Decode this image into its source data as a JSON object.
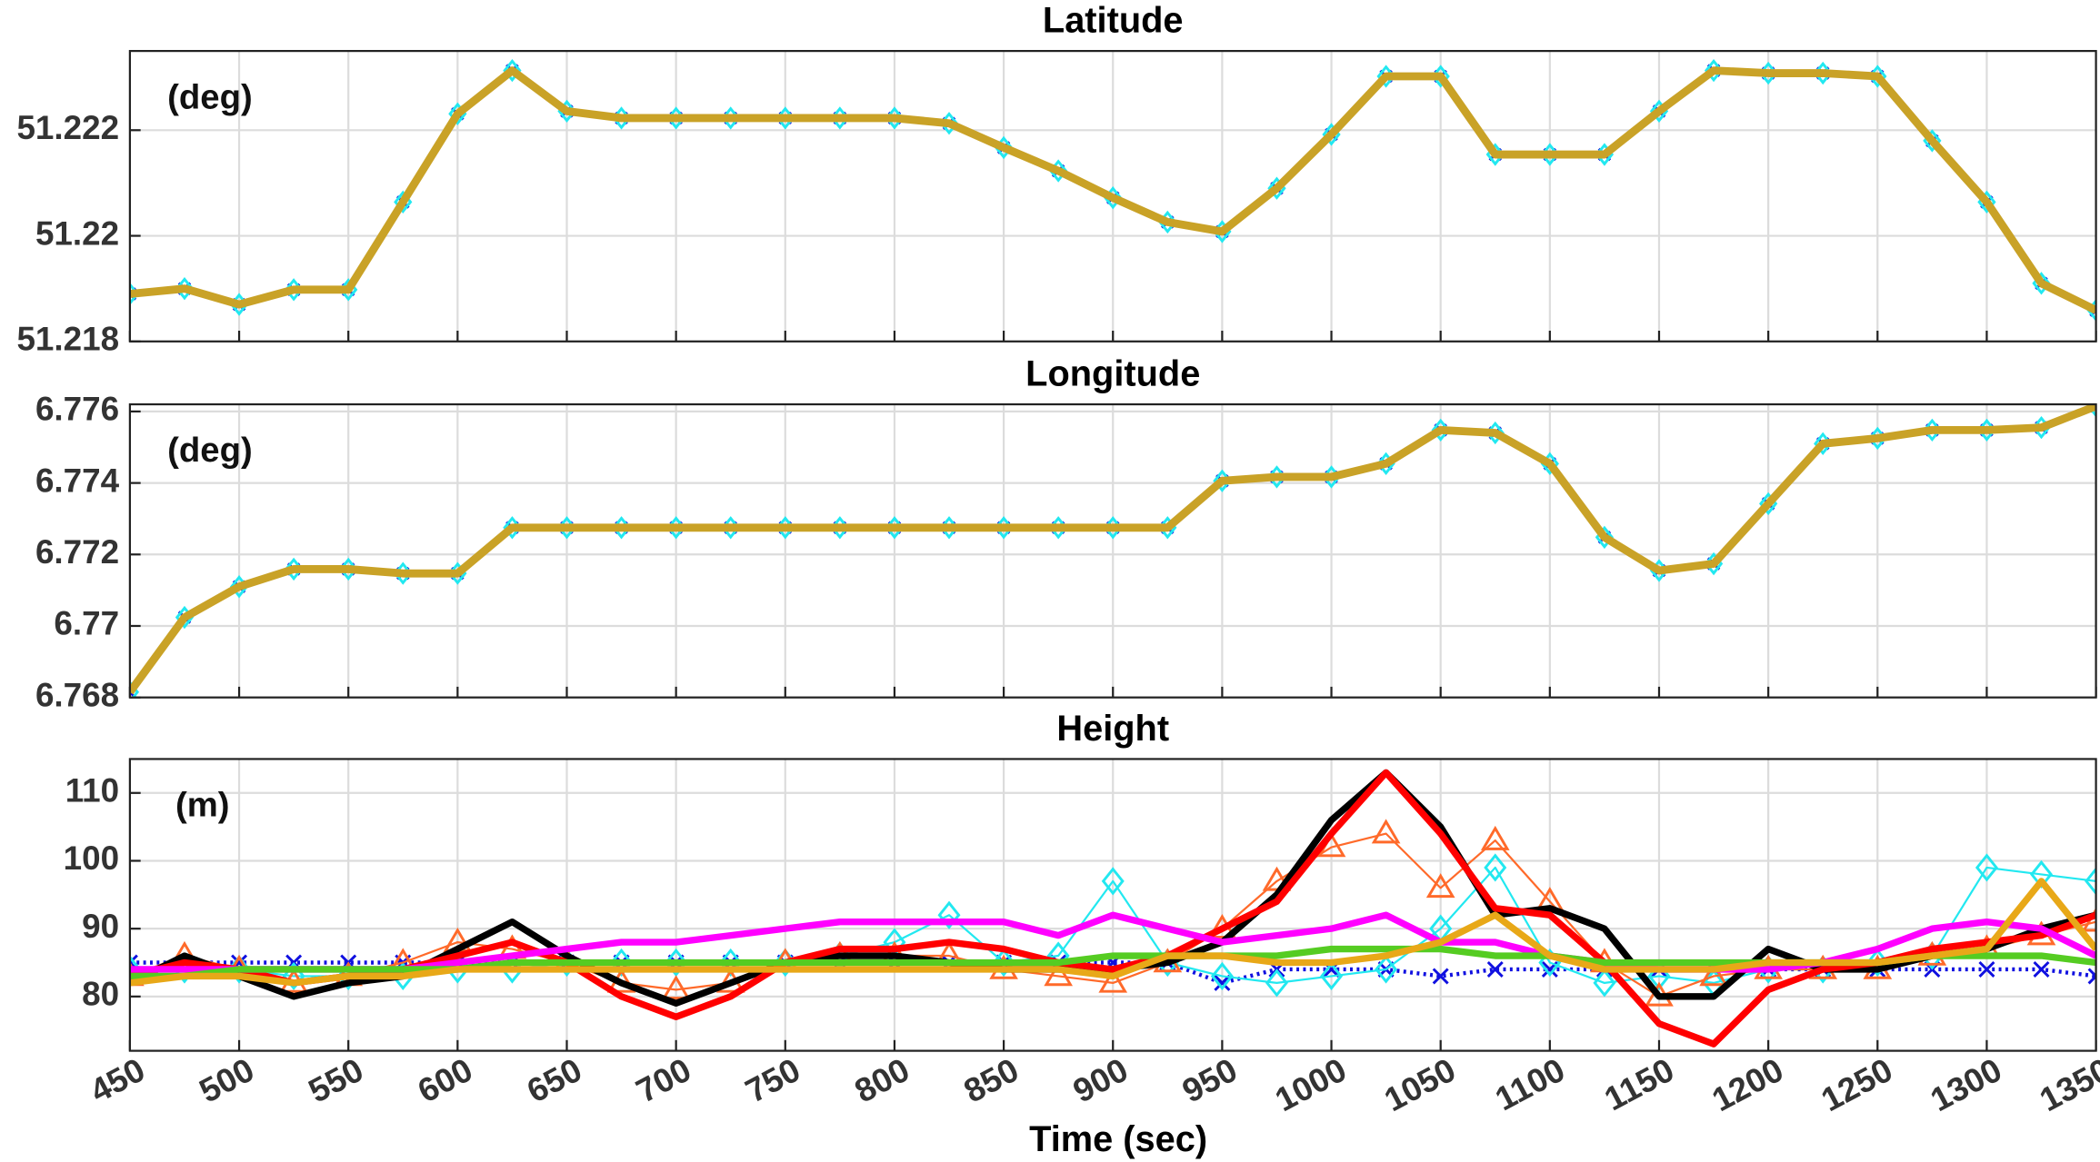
{
  "chart_data": [
    {
      "type": "line",
      "title": "Latitude",
      "annotation": "(deg)",
      "x": [
        450,
        475,
        500,
        525,
        550,
        575,
        600,
        625,
        650,
        675,
        700,
        725,
        750,
        775,
        800,
        825,
        850,
        875,
        900,
        925,
        950,
        975,
        1000,
        1025,
        1050,
        1075,
        1100,
        1125,
        1150,
        1175,
        1200,
        1225,
        1250,
        1275,
        1300,
        1325,
        1350
      ],
      "xlim": [
        450,
        1350
      ],
      "xticks": [
        450,
        500,
        550,
        600,
        650,
        700,
        750,
        800,
        850,
        900,
        950,
        1000,
        1050,
        1100,
        1150,
        1200,
        1250,
        1300,
        1350
      ],
      "ylim": [
        51.218,
        51.2235
      ],
      "yticks": [
        51.218,
        51.22,
        51.222
      ],
      "grid": true,
      "series": [
        {
          "color": "#1010e0",
          "marker": "x",
          "values": [
            51.2189,
            51.219,
            51.2187,
            51.21898,
            51.21898,
            51.22064,
            51.22231,
            51.22313,
            51.22236,
            51.22223,
            51.22223,
            51.22223,
            51.22223,
            51.22223,
            51.22223,
            51.22213,
            51.22167,
            51.22123,
            51.22072,
            51.22026,
            51.22008,
            51.2209,
            51.22192,
            51.22302,
            51.22302,
            51.22154,
            51.22154,
            51.22154,
            51.22236,
            51.22313,
            51.22308,
            51.22308,
            51.22302,
            51.2218,
            51.22064,
            51.2191,
            51.21859
          ]
        },
        {
          "color": "#22e8f0",
          "marker": "diamond",
          "values": [
            51.2189,
            51.219,
            51.2187,
            51.21898,
            51.21898,
            51.22064,
            51.22231,
            51.22313,
            51.22236,
            51.22223,
            51.22223,
            51.22223,
            51.22223,
            51.22223,
            51.22223,
            51.22213,
            51.22167,
            51.22123,
            51.22072,
            51.22026,
            51.22008,
            51.2209,
            51.22192,
            51.22302,
            51.22302,
            51.22154,
            51.22154,
            51.22154,
            51.22236,
            51.22313,
            51.22308,
            51.22308,
            51.22302,
            51.2218,
            51.22064,
            51.2191,
            51.21859
          ]
        },
        {
          "color": "#c9a227",
          "values": [
            51.2189,
            51.219,
            51.2187,
            51.21898,
            51.21898,
            51.22064,
            51.22231,
            51.22313,
            51.22236,
            51.22223,
            51.22223,
            51.22223,
            51.22223,
            51.22223,
            51.22223,
            51.22213,
            51.22167,
            51.22123,
            51.22072,
            51.22026,
            51.22008,
            51.2209,
            51.22192,
            51.22302,
            51.22302,
            51.22154,
            51.22154,
            51.22154,
            51.22236,
            51.22313,
            51.22308,
            51.22308,
            51.22302,
            51.2218,
            51.22064,
            51.2191,
            51.21859
          ]
        }
      ]
    },
    {
      "type": "line",
      "title": "Longitude",
      "annotation": "(deg)",
      "x": [
        450,
        475,
        500,
        525,
        550,
        575,
        600,
        625,
        650,
        675,
        700,
        725,
        750,
        775,
        800,
        825,
        850,
        875,
        900,
        925,
        950,
        975,
        1000,
        1025,
        1050,
        1075,
        1100,
        1125,
        1150,
        1175,
        1200,
        1225,
        1250,
        1275,
        1300,
        1325,
        1350
      ],
      "xlim": [
        450,
        1350
      ],
      "xticks": [
        450,
        500,
        550,
        600,
        650,
        700,
        750,
        800,
        850,
        900,
        950,
        1000,
        1050,
        1100,
        1150,
        1200,
        1250,
        1300,
        1350
      ],
      "ylim": [
        6.768,
        6.7762
      ],
      "yticks": [
        6.768,
        6.77,
        6.772,
        6.774,
        6.776
      ],
      "grid": true,
      "series": [
        {
          "color": "#1010e0",
          "marker": "x",
          "values": [
            6.76815,
            6.77024,
            6.7711,
            6.77159,
            6.77159,
            6.77147,
            6.77147,
            6.77275,
            6.77275,
            6.77275,
            6.77275,
            6.77275,
            6.77275,
            6.77275,
            6.77275,
            6.77275,
            6.77275,
            6.77275,
            6.77275,
            6.77275,
            6.77406,
            6.77417,
            6.77417,
            6.77454,
            6.77548,
            6.7754,
            6.77454,
            6.77248,
            6.77155,
            6.77174,
            6.77342,
            6.7751,
            6.77525,
            6.77548,
            6.77548,
            6.77555,
            6.77615
          ]
        },
        {
          "color": "#22e8f0",
          "marker": "diamond",
          "values": [
            6.76815,
            6.77024,
            6.7711,
            6.77159,
            6.77159,
            6.77147,
            6.77147,
            6.77275,
            6.77275,
            6.77275,
            6.77275,
            6.77275,
            6.77275,
            6.77275,
            6.77275,
            6.77275,
            6.77275,
            6.77275,
            6.77275,
            6.77275,
            6.77406,
            6.77417,
            6.77417,
            6.77454,
            6.77548,
            6.7754,
            6.77454,
            6.77248,
            6.77155,
            6.77174,
            6.77342,
            6.7751,
            6.77525,
            6.77548,
            6.77548,
            6.77555,
            6.77615
          ]
        },
        {
          "color": "#c9a227",
          "values": [
            6.76815,
            6.77024,
            6.7711,
            6.77159,
            6.77159,
            6.77147,
            6.77147,
            6.77275,
            6.77275,
            6.77275,
            6.77275,
            6.77275,
            6.77275,
            6.77275,
            6.77275,
            6.77275,
            6.77275,
            6.77275,
            6.77275,
            6.77275,
            6.77406,
            6.77417,
            6.77417,
            6.77454,
            6.77548,
            6.7754,
            6.77454,
            6.77248,
            6.77155,
            6.77174,
            6.77342,
            6.7751,
            6.77525,
            6.77548,
            6.77548,
            6.77555,
            6.77615
          ]
        }
      ]
    },
    {
      "type": "line",
      "title": "Height",
      "annotation": "(m)",
      "xlabel": "Time (sec)",
      "x": [
        450,
        475,
        500,
        525,
        550,
        575,
        600,
        625,
        650,
        675,
        700,
        725,
        750,
        775,
        800,
        825,
        850,
        875,
        900,
        925,
        950,
        975,
        1000,
        1025,
        1050,
        1075,
        1100,
        1125,
        1150,
        1175,
        1200,
        1225,
        1250,
        1275,
        1300,
        1325,
        1350
      ],
      "xlim": [
        450,
        1350
      ],
      "xticks": [
        450,
        500,
        550,
        600,
        650,
        700,
        750,
        800,
        850,
        900,
        950,
        1000,
        1050,
        1100,
        1150,
        1200,
        1250,
        1300,
        1350
      ],
      "ylim": [
        72,
        115
      ],
      "yticks": [
        80,
        90,
        100,
        110
      ],
      "grid": true,
      "series": [
        {
          "color": "#1010e0",
          "marker": "x",
          "values": [
            85,
            85,
            85,
            85,
            85,
            85,
            85,
            85,
            85,
            85,
            85,
            85,
            85,
            85,
            85,
            85,
            85,
            85,
            85,
            85,
            82,
            84,
            84,
            84,
            83,
            84,
            84,
            84,
            84,
            84,
            84,
            84,
            84,
            84,
            84,
            84,
            83
          ]
        },
        {
          "color": "#22e8f0",
          "marker": "diamond",
          "values": [
            84,
            84,
            84,
            83,
            83,
            83,
            84,
            84,
            85,
            85,
            85,
            85,
            85,
            86,
            88,
            92,
            85,
            86,
            97,
            85,
            83,
            82,
            83,
            84,
            90,
            99,
            85,
            82,
            83,
            82,
            84,
            84,
            85,
            86,
            99,
            98,
            97
          ]
        },
        {
          "color": "#ff6a2a",
          "marker": "triangle",
          "values": [
            83,
            86,
            84,
            82,
            83,
            85,
            88,
            87,
            85,
            82,
            81,
            82,
            85,
            86,
            86,
            86,
            84,
            83,
            82,
            85,
            90,
            97,
            102,
            104,
            96,
            103,
            94,
            85,
            80,
            83,
            84,
            84,
            84,
            86,
            87,
            89,
            91
          ]
        },
        {
          "color": "#000000",
          "values": [
            82,
            86,
            83,
            80,
            82,
            83,
            87,
            91,
            86,
            82,
            79,
            82,
            85,
            86,
            86,
            85,
            84,
            84,
            84,
            85,
            88,
            95,
            106,
            113,
            105,
            92,
            93,
            90,
            80,
            80,
            87,
            84,
            84,
            86,
            87,
            90,
            92
          ]
        },
        {
          "color": "#ff0000",
          "values": [
            83,
            85,
            84,
            82,
            83,
            84,
            86,
            88,
            85,
            80,
            77,
            80,
            85,
            87,
            87,
            88,
            87,
            85,
            84,
            86,
            90,
            94,
            104,
            113,
            104,
            93,
            92,
            85,
            76,
            73,
            81,
            84,
            85,
            87,
            88,
            89,
            92
          ]
        },
        {
          "color": "#ff00ff",
          "values": [
            84,
            84,
            84,
            84,
            84,
            84,
            85,
            86,
            87,
            88,
            88,
            89,
            90,
            91,
            91,
            91,
            91,
            89,
            92,
            90,
            88,
            89,
            90,
            92,
            88,
            88,
            86,
            85,
            84,
            84,
            84,
            85,
            87,
            90,
            91,
            90,
            86
          ]
        },
        {
          "color": "#55cc22",
          "values": [
            83,
            83,
            84,
            84,
            84,
            84,
            84,
            85,
            85,
            85,
            85,
            85,
            85,
            85,
            85,
            85,
            85,
            85,
            86,
            86,
            86,
            86,
            87,
            87,
            87,
            86,
            86,
            85,
            85,
            85,
            85,
            85,
            85,
            86,
            86,
            86,
            85
          ]
        },
        {
          "color": "#e8a818",
          "values": [
            82,
            83,
            83,
            82,
            83,
            83,
            84,
            84,
            84,
            84,
            84,
            84,
            84,
            84,
            84,
            84,
            84,
            84,
            83,
            86,
            86,
            85,
            85,
            86,
            88,
            92,
            86,
            84,
            84,
            84,
            85,
            85,
            85,
            86,
            87,
            97,
            87
          ]
        }
      ]
    }
  ]
}
